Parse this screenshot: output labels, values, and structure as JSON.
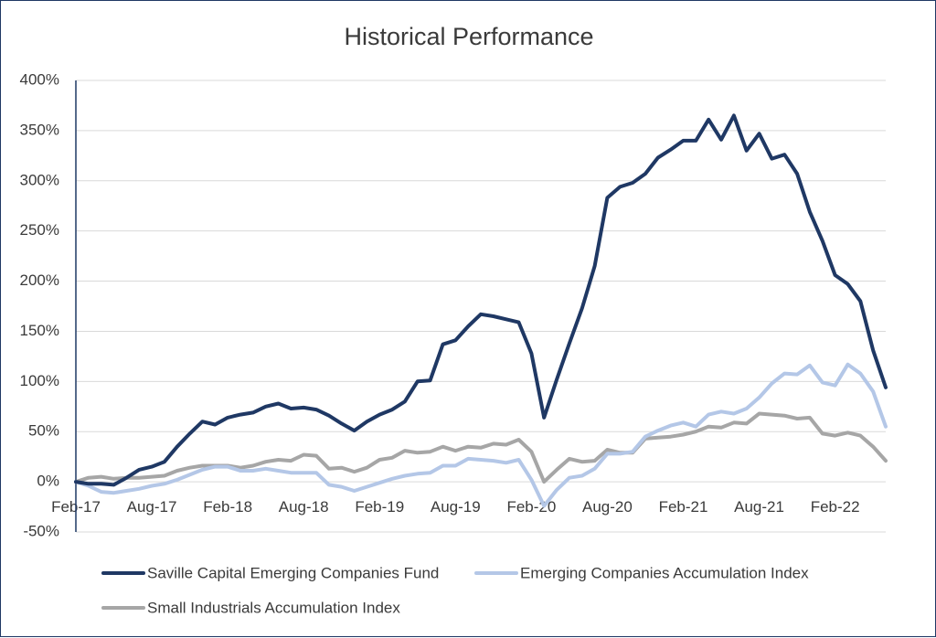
{
  "chart_data": {
    "type": "line",
    "title": "Historical Performance",
    "xlabel": "",
    "ylabel": "",
    "ylim": [
      -50,
      400
    ],
    "yticks": [
      -50,
      0,
      50,
      100,
      150,
      200,
      250,
      300,
      350,
      400
    ],
    "ytick_labels": [
      "-50%",
      "0%",
      "50%",
      "100%",
      "150%",
      "200%",
      "250%",
      "300%",
      "350%",
      "400%"
    ],
    "x_start": "Feb-17",
    "x_count": 65,
    "xtick_labels": [
      "Feb-17",
      "Aug-17",
      "Feb-18",
      "Aug-18",
      "Feb-19",
      "Aug-19",
      "Feb-20",
      "Aug-20",
      "Feb-21",
      "Aug-21",
      "Feb-22"
    ],
    "xtick_index": [
      0,
      6,
      12,
      18,
      24,
      30,
      36,
      42,
      48,
      54,
      60
    ],
    "grid": "horizontal",
    "legend_position": "bottom",
    "series": [
      {
        "name": "Saville Capital Emerging Companies Fund",
        "color": "#1f3864",
        "values": [
          0,
          -2,
          -2,
          -3,
          4,
          12,
          15,
          20,
          35,
          48,
          60,
          57,
          64,
          67,
          69,
          75,
          78,
          73,
          74,
          72,
          66,
          58,
          51,
          60,
          67,
          72,
          80,
          100,
          101,
          137,
          141,
          155,
          167,
          165,
          162,
          159,
          128,
          64,
          102,
          138,
          173,
          215,
          283,
          294,
          298,
          307,
          323,
          331,
          340,
          340,
          361,
          341,
          365,
          330,
          347,
          322,
          326,
          307,
          269,
          240,
          206,
          197,
          180,
          131,
          94
        ]
      },
      {
        "name": "Emerging Companies Accumulation Index",
        "color": "#b4c7e7",
        "values": [
          0,
          -4,
          -10,
          -11,
          -9,
          -7,
          -4,
          -2,
          2,
          7,
          12,
          15,
          15,
          11,
          11,
          13,
          11,
          9,
          9,
          9,
          -3,
          -5,
          -9,
          -5,
          -1,
          3,
          6,
          8,
          9,
          16,
          16,
          23,
          22,
          21,
          19,
          22,
          2,
          -24,
          -8,
          4,
          6,
          13,
          28,
          28,
          30,
          45,
          51,
          56,
          59,
          55,
          67,
          70,
          68,
          73,
          84,
          98,
          108,
          107,
          116,
          99,
          96,
          117,
          108,
          90,
          55
        ]
      },
      {
        "name": "Small Industrials Accumulation Index",
        "color": "#a6a6a6",
        "values": [
          0,
          4,
          5,
          3,
          4,
          4,
          5,
          6,
          11,
          14,
          16,
          16,
          16,
          14,
          16,
          20,
          22,
          21,
          27,
          26,
          13,
          14,
          10,
          14,
          22,
          24,
          31,
          29,
          30,
          35,
          31,
          35,
          34,
          38,
          37,
          42,
          30,
          0,
          12,
          23,
          20,
          21,
          32,
          29,
          29,
          43,
          44,
          45,
          47,
          50,
          55,
          54,
          59,
          58,
          68,
          67,
          66,
          63,
          64,
          48,
          46,
          49,
          46,
          35,
          21
        ]
      }
    ]
  }
}
